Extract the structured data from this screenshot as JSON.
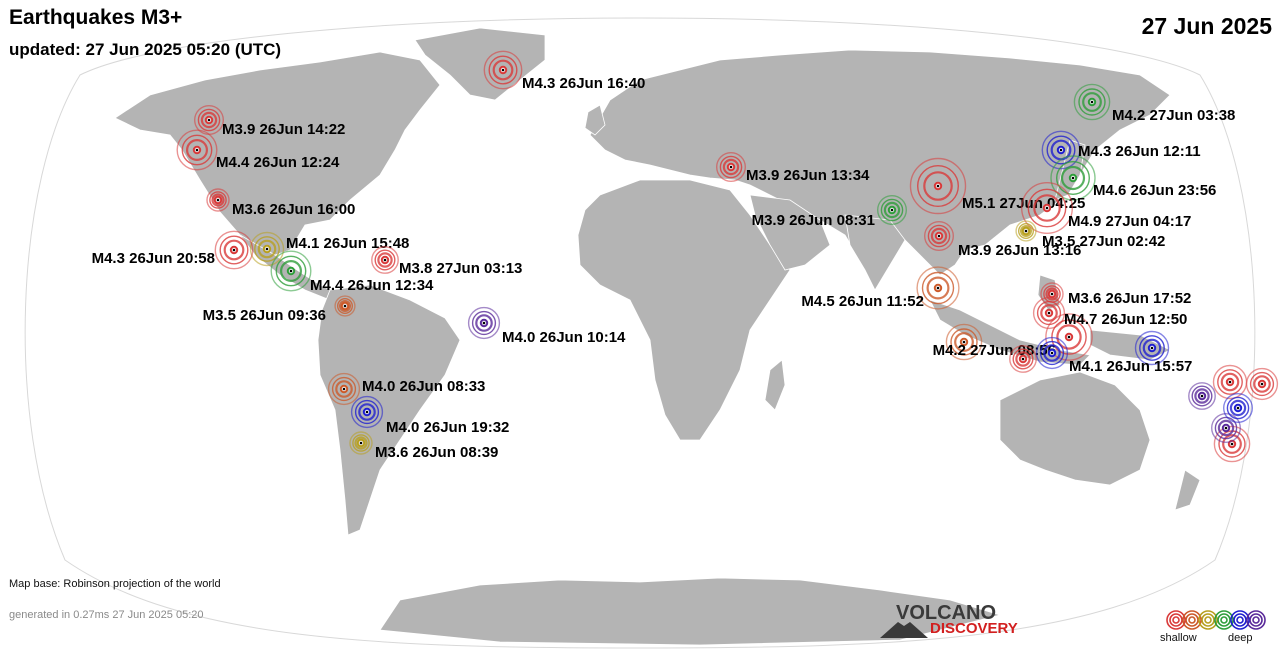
{
  "header": {
    "title": "Earthquakes M3+",
    "updated": "updated: 27 Jun 2025 05:20 (UTC)",
    "date": "27 Jun 2025"
  },
  "footer": {
    "map_base": "Map base: Robinson projection of the world",
    "generated": "generated in 0.27ms 27 Jun 2025 05:20"
  },
  "logo": {
    "line1": "VOLCANO",
    "line2": "DISCOVERY"
  },
  "legend": {
    "shallow": "shallow",
    "deep": "deep",
    "colors": [
      "#d93a3a",
      "#cc5a2a",
      "#b8a020",
      "#2e9e3a",
      "#1f1fd0",
      "#5a2a9a"
    ]
  },
  "colors": {
    "land": "#b4b4b4",
    "ocean": "#ffffff",
    "border": "#ffffff",
    "outline": "#d8d8d8"
  },
  "quakes": [
    {
      "label": "M4.3 26Jun 16:40",
      "mag": 4.3,
      "color": "#d93a3a"
    },
    {
      "label": "M4.2 27Jun 03:38",
      "mag": 4.2,
      "color": "#2e9e3a"
    },
    {
      "label": "M3.9 26Jun 14:22",
      "mag": 3.9,
      "color": "#d93a3a"
    },
    {
      "label": "M4.4 26Jun 12:24",
      "mag": 4.4,
      "color": "#d93a3a"
    },
    {
      "label": "M4.3 26Jun 12:11",
      "mag": 4.3,
      "color": "#1f1fd0"
    },
    {
      "label": "M3.9 26Jun 13:34",
      "mag": 3.9,
      "color": "#d93a3a"
    },
    {
      "label": "M4.6 26Jun 23:56",
      "mag": 4.6,
      "color": "#2e9e3a"
    },
    {
      "label": "M3.6 26Jun 16:00",
      "mag": 3.6,
      "color": "#d93a3a"
    },
    {
      "label": "M5.1 27Jun 04:25",
      "mag": 5.1,
      "color": "#d93a3a"
    },
    {
      "label": "M3.9 26Jun 08:31",
      "mag": 3.9,
      "color": "#2e9e3a"
    },
    {
      "label": "M4.9 27Jun 04:17",
      "mag": 4.9,
      "color": "#d93a3a"
    },
    {
      "label": "M3.5 27Jun 02:42",
      "mag": 3.5,
      "color": "#b8a020"
    },
    {
      "label": "M4.1 26Jun 15:48",
      "mag": 4.1,
      "color": "#b8a020"
    },
    {
      "label": "M4.3 26Jun 20:58",
      "mag": 4.3,
      "color": "#d93a3a"
    },
    {
      "label": "M3.9 26Jun 13:16",
      "mag": 3.9,
      "color": "#d93a3a"
    },
    {
      "label": "M3.8 27Jun 03:13",
      "mag": 3.8,
      "color": "#d93a3a"
    },
    {
      "label": "M4.4 26Jun 12:34",
      "mag": 4.4,
      "color": "#2e9e3a"
    },
    {
      "label": "M4.5 26Jun 11:52",
      "mag": 4.5,
      "color": "#cc5a2a"
    },
    {
      "label": "M3.6 26Jun 17:52",
      "mag": 3.6,
      "color": "#d93a3a"
    },
    {
      "label": "M3.5 26Jun 09:36",
      "mag": 3.5,
      "color": "#cc5a2a"
    },
    {
      "label": "M4.7 26Jun 12:50",
      "mag": 4.7,
      "color": "#d93a3a"
    },
    {
      "label": "M4.0 26Jun 10:14",
      "mag": 4.0,
      "color": "#5a2a9a"
    },
    {
      "label": "M4.2 27Jun 08:56",
      "mag": 4.2,
      "color": "#cc5a2a"
    },
    {
      "label": "M4.1 26Jun 15:57",
      "mag": 4.1,
      "color": "#1f1fd0"
    },
    {
      "label": "M4.0 26Jun 08:33",
      "mag": 4.0,
      "color": "#cc5a2a"
    },
    {
      "label": "M4.0 26Jun 19:32",
      "mag": 4.0,
      "color": "#1f1fd0"
    },
    {
      "label": "M3.6 26Jun 08:39",
      "mag": 3.6,
      "color": "#b8a020"
    },
    {
      "label": "",
      "mag": 4.0,
      "color": "#d93a3a"
    },
    {
      "label": "",
      "mag": 3.8,
      "color": "#5a2a9a"
    },
    {
      "label": "",
      "mag": 4.1,
      "color": "#d93a3a"
    },
    {
      "label": "",
      "mag": 4.2,
      "color": "#d93a3a"
    },
    {
      "label": "",
      "mag": 3.9,
      "color": "#5a2a9a"
    },
    {
      "label": "",
      "mag": 3.9,
      "color": "#1f1fd0"
    },
    {
      "label": "",
      "mag": 4.0,
      "color": "#d93a3a"
    },
    {
      "label": "",
      "mag": 3.8,
      "color": "#d93a3a"
    },
    {
      "label": "",
      "mag": 4.0,
      "color": "#1f1fd0"
    }
  ]
}
